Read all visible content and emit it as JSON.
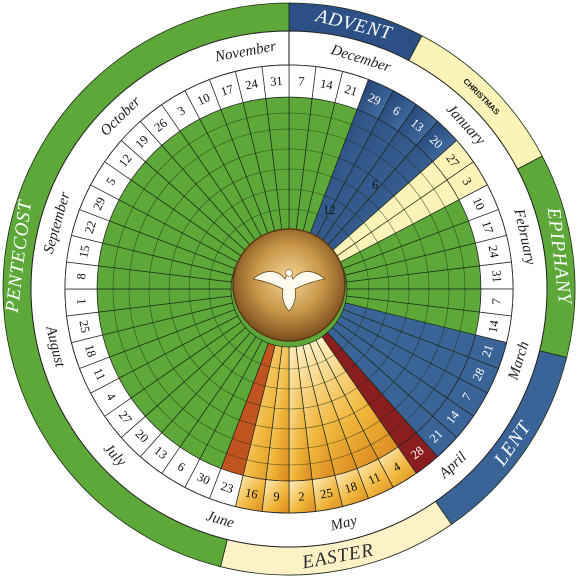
{
  "title": "",
  "colors": {
    "ordinary_green": "#5da838",
    "ordinary_green_light": "#7cc04a",
    "advent_blue": "#2c4f86",
    "advent_blue_light": "#3a6aa6",
    "christmas_white": "#fbf3b8",
    "epiphany_blue": "#3a6497",
    "lent_purple": "#3d2a6a",
    "holy_week_red": "#8a1e1e",
    "easter_gold": "#f0b53a",
    "easter_white": "#fdf1c8",
    "pentecost_red": "#c0531f",
    "center_gold": "#b7893a",
    "grid_line": "#1b2b14"
  },
  "seasons": [
    {
      "key": "advent",
      "label": "ADVENT"
    },
    {
      "key": "christmas",
      "label": "CHRISTMAS"
    },
    {
      "key": "epiphany",
      "label": "EPIPHANY"
    },
    {
      "key": "lent",
      "label": "LENT"
    },
    {
      "key": "easter",
      "label": "EASTER"
    },
    {
      "key": "pentecost",
      "label": "PENTECOST"
    }
  ],
  "months": [
    {
      "key": "november",
      "label": "November"
    },
    {
      "key": "december",
      "label": "December"
    },
    {
      "key": "january",
      "label": "January"
    },
    {
      "key": "february",
      "label": "February"
    },
    {
      "key": "march",
      "label": "March"
    },
    {
      "key": "april",
      "label": "April"
    },
    {
      "key": "may",
      "label": "May"
    },
    {
      "key": "june",
      "label": "June"
    },
    {
      "key": "july",
      "label": "July"
    },
    {
      "key": "august",
      "label": "August"
    },
    {
      "key": "september",
      "label": "September"
    },
    {
      "key": "october",
      "label": "October"
    }
  ],
  "sundays": [
    {
      "day": "7",
      "season": "ordinary"
    },
    {
      "day": "14",
      "season": "ordinary"
    },
    {
      "day": "21",
      "season": "ordinary"
    },
    {
      "day": "29",
      "season": "advent"
    },
    {
      "day": "6",
      "season": "advent"
    },
    {
      "day": "13",
      "season": "advent"
    },
    {
      "day": "20",
      "season": "advent"
    },
    {
      "day": "27",
      "season": "christmas"
    },
    {
      "day": "3",
      "season": "christmas"
    },
    {
      "day": "10",
      "season": "ordinary"
    },
    {
      "day": "17",
      "season": "ordinary"
    },
    {
      "day": "24",
      "season": "ordinary"
    },
    {
      "day": "31",
      "season": "ordinary"
    },
    {
      "day": "7",
      "season": "ordinary"
    },
    {
      "day": "14",
      "season": "ordinary"
    },
    {
      "day": "21",
      "season": "lent"
    },
    {
      "day": "28",
      "season": "lent"
    },
    {
      "day": "7",
      "season": "lent"
    },
    {
      "day": "14",
      "season": "lent"
    },
    {
      "day": "21",
      "season": "lent"
    },
    {
      "day": "28",
      "season": "holyweek"
    },
    {
      "day": "4",
      "season": "easter"
    },
    {
      "day": "11",
      "season": "easter"
    },
    {
      "day": "18",
      "season": "easter"
    },
    {
      "day": "25",
      "season": "easter"
    },
    {
      "day": "2",
      "season": "easter"
    },
    {
      "day": "9",
      "season": "easter"
    },
    {
      "day": "16",
      "season": "easter"
    },
    {
      "day": "23",
      "season": "pentecost"
    },
    {
      "day": "30",
      "season": "ordinary"
    },
    {
      "day": "6",
      "season": "ordinary"
    },
    {
      "day": "13",
      "season": "ordinary"
    },
    {
      "day": "20",
      "season": "ordinary"
    },
    {
      "day": "27",
      "season": "ordinary"
    },
    {
      "day": "4",
      "season": "ordinary"
    },
    {
      "day": "11",
      "season": "ordinary"
    },
    {
      "day": "18",
      "season": "ordinary"
    },
    {
      "day": "25",
      "season": "ordinary"
    },
    {
      "day": "1",
      "season": "ordinary"
    },
    {
      "day": "8",
      "season": "ordinary"
    },
    {
      "day": "15",
      "season": "ordinary"
    },
    {
      "day": "22",
      "season": "ordinary"
    },
    {
      "day": "29",
      "season": "ordinary"
    },
    {
      "day": "5",
      "season": "ordinary"
    },
    {
      "day": "12",
      "season": "ordinary"
    },
    {
      "day": "19",
      "season": "ordinary"
    },
    {
      "day": "26",
      "season": "ordinary"
    },
    {
      "day": "3",
      "season": "ordinary"
    },
    {
      "day": "10",
      "season": "ordinary"
    },
    {
      "day": "17",
      "season": "ordinary"
    },
    {
      "day": "24",
      "season": "ordinary"
    },
    {
      "day": "31",
      "season": "ordinary"
    }
  ],
  "inner_labels": [
    {
      "text": "6"
    },
    {
      "text": "12"
    }
  ],
  "center_emblem": "dove-icon"
}
